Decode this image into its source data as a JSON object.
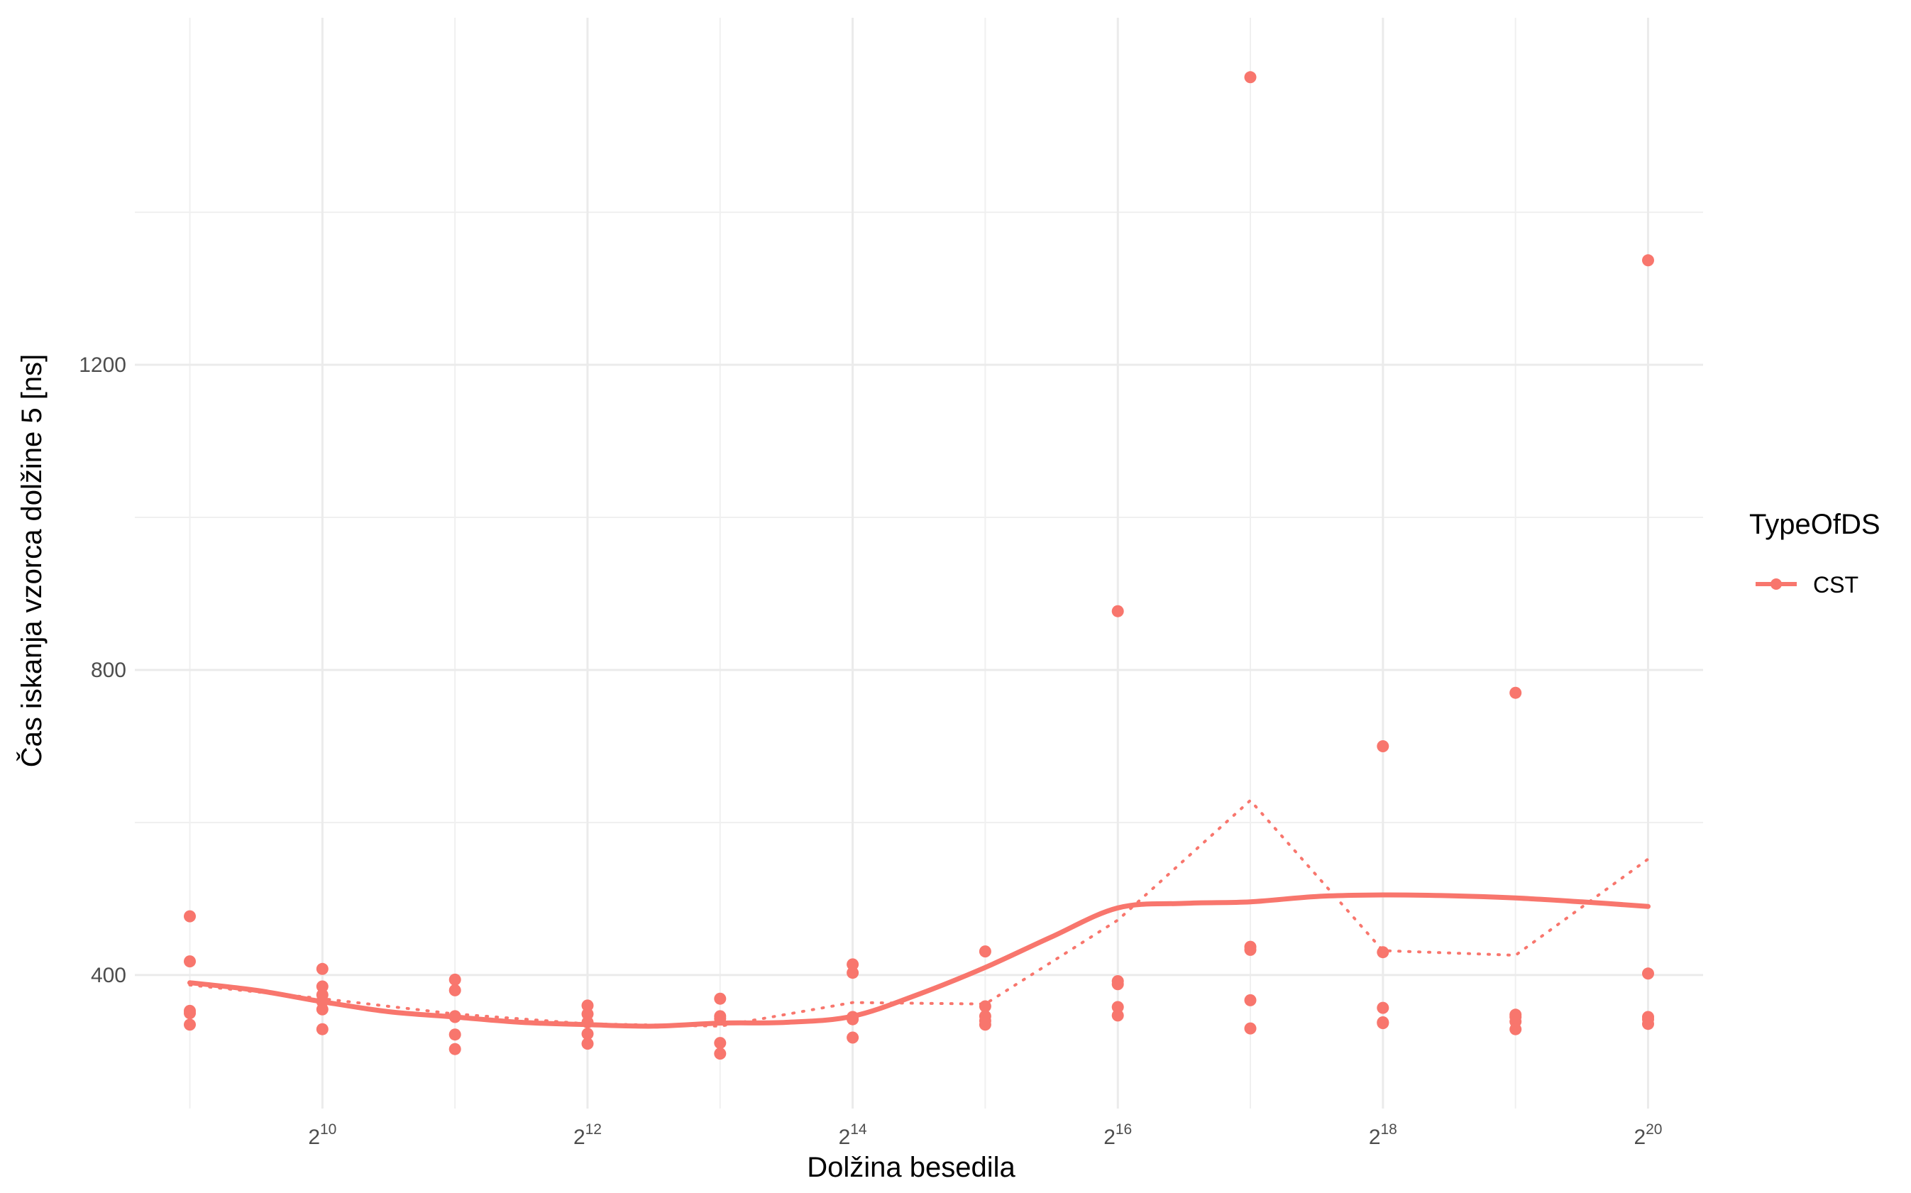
{
  "chart_data": {
    "type": "scatter",
    "xlabel": "Dolžina besedila",
    "ylabel": "Čas iskanja vzorca dolžine 5 [ns]",
    "x_scale": "log2",
    "x_ticks": [
      {
        "base": "2",
        "exp": "10",
        "value": 1024
      },
      {
        "base": "2",
        "exp": "12",
        "value": 4096
      },
      {
        "base": "2",
        "exp": "14",
        "value": 16384
      },
      {
        "base": "2",
        "exp": "16",
        "value": 65536
      },
      {
        "base": "2",
        "exp": "18",
        "value": 262144
      },
      {
        "base": "2",
        "exp": "20",
        "value": 1048576
      }
    ],
    "y_ticks": [
      {
        "label": "400",
        "value": 400
      },
      {
        "label": "800",
        "value": 800
      },
      {
        "label": "1200",
        "value": 1200
      }
    ],
    "xlim": [
      384,
      1398101
    ],
    "ylim": [
      225,
      1655
    ],
    "grid": true,
    "color": "#F8766D",
    "legend": {
      "title": "TypeOfDS",
      "entries": [
        "CST"
      ],
      "position": "right"
    },
    "series": [
      {
        "name": "CST",
        "points": [
          {
            "x": 512,
            "y": 477
          },
          {
            "x": 512,
            "y": 418
          },
          {
            "x": 512,
            "y": 353
          },
          {
            "x": 512,
            "y": 350
          },
          {
            "x": 512,
            "y": 335
          },
          {
            "x": 1024,
            "y": 408
          },
          {
            "x": 1024,
            "y": 385
          },
          {
            "x": 1024,
            "y": 374
          },
          {
            "x": 1024,
            "y": 365
          },
          {
            "x": 1024,
            "y": 355
          },
          {
            "x": 1024,
            "y": 329
          },
          {
            "x": 2048,
            "y": 394
          },
          {
            "x": 2048,
            "y": 380
          },
          {
            "x": 2048,
            "y": 346
          },
          {
            "x": 2048,
            "y": 345
          },
          {
            "x": 2048,
            "y": 322
          },
          {
            "x": 2048,
            "y": 303
          },
          {
            "x": 4096,
            "y": 360
          },
          {
            "x": 4096,
            "y": 349
          },
          {
            "x": 4096,
            "y": 338
          },
          {
            "x": 4096,
            "y": 323
          },
          {
            "x": 4096,
            "y": 310
          },
          {
            "x": 8192,
            "y": 369
          },
          {
            "x": 8192,
            "y": 346
          },
          {
            "x": 8192,
            "y": 343
          },
          {
            "x": 8192,
            "y": 311
          },
          {
            "x": 8192,
            "y": 297
          },
          {
            "x": 16384,
            "y": 414
          },
          {
            "x": 16384,
            "y": 403
          },
          {
            "x": 16384,
            "y": 345
          },
          {
            "x": 16384,
            "y": 342
          },
          {
            "x": 16384,
            "y": 318
          },
          {
            "x": 32768,
            "y": 431
          },
          {
            "x": 32768,
            "y": 359
          },
          {
            "x": 32768,
            "y": 346
          },
          {
            "x": 32768,
            "y": 340
          },
          {
            "x": 32768,
            "y": 335
          },
          {
            "x": 65536,
            "y": 877
          },
          {
            "x": 65536,
            "y": 392
          },
          {
            "x": 65536,
            "y": 388
          },
          {
            "x": 65536,
            "y": 358
          },
          {
            "x": 65536,
            "y": 347
          },
          {
            "x": 131072,
            "y": 1577
          },
          {
            "x": 131072,
            "y": 437
          },
          {
            "x": 131072,
            "y": 433
          },
          {
            "x": 131072,
            "y": 367
          },
          {
            "x": 131072,
            "y": 330
          },
          {
            "x": 262144,
            "y": 700
          },
          {
            "x": 262144,
            "y": 430
          },
          {
            "x": 262144,
            "y": 357
          },
          {
            "x": 262144,
            "y": 338
          },
          {
            "x": 262144,
            "y": 337
          },
          {
            "x": 524288,
            "y": 770
          },
          {
            "x": 524288,
            "y": 348
          },
          {
            "x": 524288,
            "y": 345
          },
          {
            "x": 524288,
            "y": 339
          },
          {
            "x": 524288,
            "y": 329
          },
          {
            "x": 1048576,
            "y": 1337
          },
          {
            "x": 1048576,
            "y": 402
          },
          {
            "x": 1048576,
            "y": 345
          },
          {
            "x": 1048576,
            "y": 342
          },
          {
            "x": 1048576,
            "y": 336
          }
        ],
        "smooth_line": [
          {
            "x": 512,
            "y": 390
          },
          {
            "x": 724,
            "y": 380
          },
          {
            "x": 1024,
            "y": 365
          },
          {
            "x": 1448,
            "y": 352
          },
          {
            "x": 2048,
            "y": 345
          },
          {
            "x": 2896,
            "y": 338
          },
          {
            "x": 4096,
            "y": 335
          },
          {
            "x": 5793,
            "y": 333
          },
          {
            "x": 8192,
            "y": 337
          },
          {
            "x": 11585,
            "y": 338
          },
          {
            "x": 16384,
            "y": 346
          },
          {
            "x": 23170,
            "y": 375
          },
          {
            "x": 32768,
            "y": 410
          },
          {
            "x": 46341,
            "y": 450
          },
          {
            "x": 65536,
            "y": 488
          },
          {
            "x": 92682,
            "y": 494
          },
          {
            "x": 131072,
            "y": 496
          },
          {
            "x": 185364,
            "y": 503
          },
          {
            "x": 262144,
            "y": 505
          },
          {
            "x": 370728,
            "y": 504
          },
          {
            "x": 524288,
            "y": 501
          },
          {
            "x": 741455,
            "y": 496
          },
          {
            "x": 1048576,
            "y": 490
          }
        ],
        "mean_line": [
          {
            "x": 512,
            "y": 387
          },
          {
            "x": 1024,
            "y": 369
          },
          {
            "x": 2048,
            "y": 349
          },
          {
            "x": 4096,
            "y": 336
          },
          {
            "x": 8192,
            "y": 333
          },
          {
            "x": 16384,
            "y": 364
          },
          {
            "x": 32768,
            "y": 362
          },
          {
            "x": 65536,
            "y": 472
          },
          {
            "x": 131072,
            "y": 629
          },
          {
            "x": 262144,
            "y": 432
          },
          {
            "x": 524288,
            "y": 426
          },
          {
            "x": 1048576,
            "y": 552
          }
        ]
      }
    ]
  }
}
